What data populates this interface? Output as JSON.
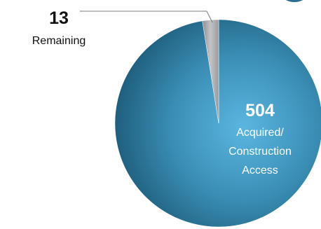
{
  "chart_data": {
    "type": "pie",
    "slices": [
      {
        "value": 504,
        "value_label": "504",
        "label_lines": [
          "Acquired/",
          "Construction",
          "Access"
        ],
        "color": "#2f7fa3"
      },
      {
        "value": 13,
        "value_label": "13",
        "label_lines": [
          "Remaining"
        ],
        "color": "#a9a9ab"
      }
    ],
    "legend": "none",
    "grid": false
  }
}
